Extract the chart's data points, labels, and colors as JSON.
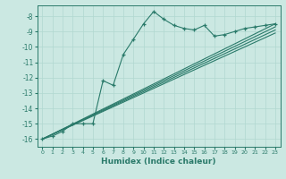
{
  "title": "",
  "xlabel": "Humidex (Indice chaleur)",
  "bg_color": "#cbe8e2",
  "grid_color": "#b0d8d0",
  "line_color": "#2a7a6a",
  "xlim": [
    -0.5,
    23.5
  ],
  "ylim": [
    -16.5,
    -7.3
  ],
  "yticks": [
    -16,
    -15,
    -14,
    -13,
    -12,
    -11,
    -10,
    -9,
    -8
  ],
  "xticks": [
    0,
    1,
    2,
    3,
    4,
    5,
    6,
    7,
    8,
    9,
    10,
    11,
    12,
    13,
    14,
    15,
    16,
    17,
    18,
    19,
    20,
    21,
    22,
    23
  ],
  "main_x": [
    0,
    1,
    2,
    3,
    4,
    5,
    6,
    7,
    8,
    9,
    10,
    11,
    12,
    13,
    14,
    15,
    16,
    17,
    18,
    19,
    20,
    21,
    22,
    23
  ],
  "main_y": [
    -16.0,
    -15.8,
    -15.5,
    -15.0,
    -15.0,
    -15.0,
    -12.2,
    -12.5,
    -10.5,
    -9.5,
    -8.5,
    -7.7,
    -8.2,
    -8.6,
    -8.8,
    -8.9,
    -8.6,
    -9.3,
    -9.2,
    -9.0,
    -8.8,
    -8.7,
    -8.6,
    -8.5
  ],
  "ref_lines": [
    {
      "x0": 0,
      "y0": -16.0,
      "x1": 23,
      "y1": -8.5
    },
    {
      "x0": 0,
      "y0": -16.0,
      "x1": 23,
      "y1": -8.7
    },
    {
      "x0": 0,
      "y0": -16.0,
      "x1": 23,
      "y1": -8.9
    },
    {
      "x0": 0,
      "y0": -16.0,
      "x1": 23,
      "y1": -9.1
    }
  ]
}
